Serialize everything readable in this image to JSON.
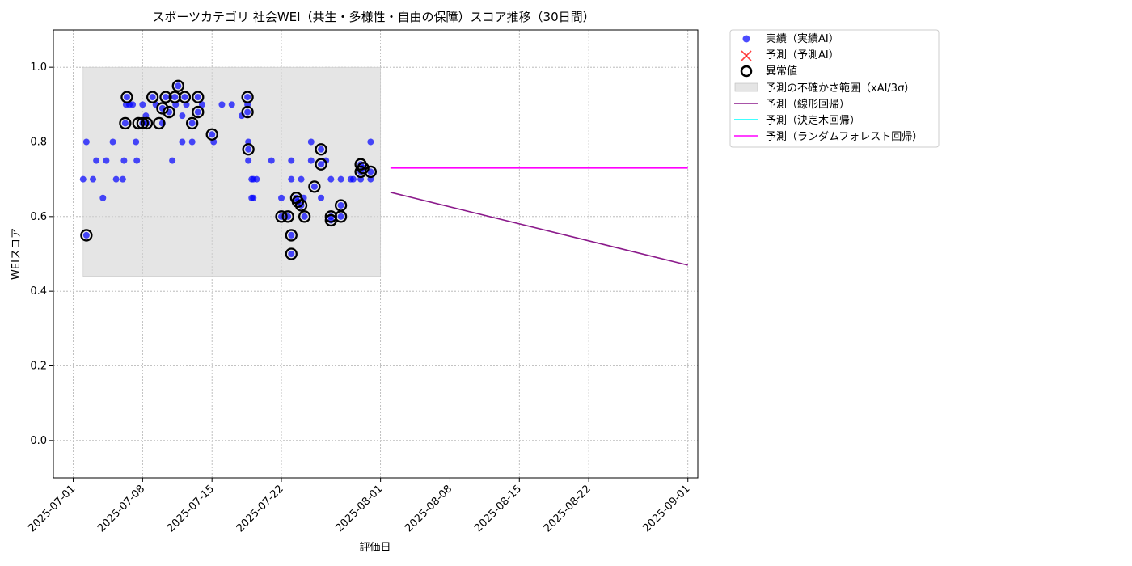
{
  "chart_data": {
    "type": "scatter",
    "title": "スポーツカテゴリ 社会WEI（共生・多様性・自由の保障）スコア推移（30日間）",
    "xlabel": "評価日",
    "ylabel": "WEIスコア",
    "xlim": [
      "2025-06-29",
      "2025-09-02"
    ],
    "ylim": [
      -0.1,
      1.1
    ],
    "x_ticks": [
      "2025-07-01",
      "2025-07-08",
      "2025-07-15",
      "2025-07-22",
      "2025-08-01",
      "2025-08-08",
      "2025-08-15",
      "2025-08-22",
      "2025-09-01"
    ],
    "y_ticks": [
      "0.0",
      "0.2",
      "0.4",
      "0.6",
      "0.8",
      "1.0"
    ],
    "grid": true,
    "legend_position": "outside-top-right",
    "colors": {
      "actual": "#0000ff",
      "predicted_ai": "#ff0000",
      "anomaly": "#000000",
      "uncertainty": "#d3d3d3",
      "linear": "#8b1a8b",
      "decision_tree": "#00ffff",
      "random_forest": "#ff00ff"
    },
    "legend": [
      {
        "key": "actual",
        "label": "実績（実績AI）"
      },
      {
        "key": "predicted_ai",
        "label": "予測（予測AI）"
      },
      {
        "key": "anomaly",
        "label": "異常値"
      },
      {
        "key": "uncertainty",
        "label": "予測の不確かさ範囲（xAI/3σ）"
      },
      {
        "key": "linear",
        "label": "予測（線形回帰）"
      },
      {
        "key": "decision_tree",
        "label": "予測（決定木回帰）"
      },
      {
        "key": "random_forest",
        "label": "予測（ランダムフォレスト回帰）"
      }
    ],
    "uncertainty_band": {
      "x_start": "2025-07-02",
      "x_end": "2025-08-01",
      "y_low": 0.44,
      "y_high": 1.0
    },
    "actual_points": [
      [
        "2025-07-02",
        0.7
      ],
      [
        "2025-07-02T08",
        0.55
      ],
      [
        "2025-07-02T08",
        0.8
      ],
      [
        "2025-07-03",
        0.7
      ],
      [
        "2025-07-03T08",
        0.75
      ],
      [
        "2025-07-04",
        0.65
      ],
      [
        "2025-07-04T08",
        0.75
      ],
      [
        "2025-07-05",
        0.8
      ],
      [
        "2025-07-05T08",
        0.7
      ],
      [
        "2025-07-06",
        0.7
      ],
      [
        "2025-07-06T03",
        0.75
      ],
      [
        "2025-07-06T06",
        0.85
      ],
      [
        "2025-07-06T08",
        0.9
      ],
      [
        "2025-07-06T10",
        0.92
      ],
      [
        "2025-07-06T16",
        0.9
      ],
      [
        "2025-07-07",
        0.9
      ],
      [
        "2025-07-07T08",
        0.8
      ],
      [
        "2025-07-07T10",
        0.75
      ],
      [
        "2025-07-08",
        0.85
      ],
      [
        "2025-07-08",
        0.9
      ],
      [
        "2025-07-08T08",
        0.87
      ],
      [
        "2025-07-08T10",
        0.85
      ],
      [
        "2025-07-09",
        0.92
      ],
      [
        "2025-07-09T08",
        0.9
      ],
      [
        "2025-07-10",
        0.85
      ],
      [
        "2025-07-10",
        0.89
      ],
      [
        "2025-07-10T08",
        0.92
      ],
      [
        "2025-07-10T16",
        0.88
      ],
      [
        "2025-07-11",
        0.75
      ],
      [
        "2025-07-11T06",
        0.92
      ],
      [
        "2025-07-11T08",
        0.9
      ],
      [
        "2025-07-11T14",
        0.95
      ],
      [
        "2025-07-12",
        0.87
      ],
      [
        "2025-07-12",
        0.8
      ],
      [
        "2025-07-12T06",
        0.92
      ],
      [
        "2025-07-12T10",
        0.9
      ],
      [
        "2025-07-13",
        0.85
      ],
      [
        "2025-07-13",
        0.8
      ],
      [
        "2025-07-13T14",
        0.92
      ],
      [
        "2025-07-13T14",
        0.88
      ],
      [
        "2025-07-14",
        0.9
      ],
      [
        "2025-07-15",
        0.82
      ],
      [
        "2025-07-15T04",
        0.8
      ],
      [
        "2025-07-16",
        0.9
      ],
      [
        "2025-07-17",
        0.9
      ],
      [
        "2025-07-18",
        0.87
      ],
      [
        "2025-07-18T14",
        0.92
      ],
      [
        "2025-07-18T14",
        0.88
      ],
      [
        "2025-07-18T14",
        0.9
      ],
      [
        "2025-07-18T16",
        0.8
      ],
      [
        "2025-07-18T16",
        0.78
      ],
      [
        "2025-07-18T16",
        0.75
      ],
      [
        "2025-07-19",
        0.7
      ],
      [
        "2025-07-19",
        0.65
      ],
      [
        "2025-07-19T04",
        0.7
      ],
      [
        "2025-07-19T04",
        0.65
      ],
      [
        "2025-07-19T12",
        0.7
      ],
      [
        "2025-07-21",
        0.75
      ],
      [
        "2025-07-22",
        0.65
      ],
      [
        "2025-07-22",
        0.6
      ],
      [
        "2025-07-22T16",
        0.6
      ],
      [
        "2025-07-23",
        0.75
      ],
      [
        "2025-07-23",
        0.7
      ],
      [
        "2025-07-23",
        0.55
      ],
      [
        "2025-07-23",
        0.5
      ],
      [
        "2025-07-23T12",
        0.65
      ],
      [
        "2025-07-23T16",
        0.64
      ],
      [
        "2025-07-24",
        0.7
      ],
      [
        "2025-07-24",
        0.63
      ],
      [
        "2025-07-24T06",
        0.65
      ],
      [
        "2025-07-24T08",
        0.6
      ],
      [
        "2025-07-25",
        0.8
      ],
      [
        "2025-07-25",
        0.75
      ],
      [
        "2025-07-25T08",
        0.68
      ],
      [
        "2025-07-26",
        0.65
      ],
      [
        "2025-07-26",
        0.78
      ],
      [
        "2025-07-26",
        0.74
      ],
      [
        "2025-07-26T12",
        0.75
      ],
      [
        "2025-07-27",
        0.7
      ],
      [
        "2025-07-27",
        0.6
      ],
      [
        "2025-07-27",
        0.59
      ],
      [
        "2025-07-28",
        0.7
      ],
      [
        "2025-07-28",
        0.63
      ],
      [
        "2025-07-28",
        0.6
      ],
      [
        "2025-07-29",
        0.7
      ],
      [
        "2025-07-29T06",
        0.7
      ],
      [
        "2025-07-30",
        0.74
      ],
      [
        "2025-07-30",
        0.72
      ],
      [
        "2025-07-30",
        0.7
      ],
      [
        "2025-07-30T06",
        0.73
      ],
      [
        "2025-07-31",
        0.7
      ],
      [
        "2025-07-31",
        0.72
      ],
      [
        "2025-07-31",
        0.8
      ]
    ],
    "anomaly_points": [
      [
        "2025-07-02T08",
        0.55
      ],
      [
        "2025-07-06T06",
        0.85
      ],
      [
        "2025-07-06T10",
        0.92
      ],
      [
        "2025-07-07T14",
        0.85
      ],
      [
        "2025-07-08",
        0.85
      ],
      [
        "2025-07-08T10",
        0.85
      ],
      [
        "2025-07-09",
        0.92
      ],
      [
        "2025-07-09T16",
        0.85
      ],
      [
        "2025-07-10",
        0.89
      ],
      [
        "2025-07-10T08",
        0.92
      ],
      [
        "2025-07-10T16",
        0.88
      ],
      [
        "2025-07-11T06",
        0.92
      ],
      [
        "2025-07-11T14",
        0.95
      ],
      [
        "2025-07-12T06",
        0.92
      ],
      [
        "2025-07-13",
        0.85
      ],
      [
        "2025-07-13T14",
        0.92
      ],
      [
        "2025-07-13T14",
        0.88
      ],
      [
        "2025-07-15",
        0.82
      ],
      [
        "2025-07-18T14",
        0.92
      ],
      [
        "2025-07-18T14",
        0.88
      ],
      [
        "2025-07-18T16",
        0.78
      ],
      [
        "2025-07-22",
        0.6
      ],
      [
        "2025-07-22T16",
        0.6
      ],
      [
        "2025-07-23",
        0.55
      ],
      [
        "2025-07-23",
        0.5
      ],
      [
        "2025-07-23T12",
        0.65
      ],
      [
        "2025-07-23T16",
        0.64
      ],
      [
        "2025-07-24",
        0.63
      ],
      [
        "2025-07-24T08",
        0.6
      ],
      [
        "2025-07-25T08",
        0.68
      ],
      [
        "2025-07-26",
        0.78
      ],
      [
        "2025-07-26",
        0.74
      ],
      [
        "2025-07-27",
        0.6
      ],
      [
        "2025-07-27",
        0.59
      ],
      [
        "2025-07-28",
        0.63
      ],
      [
        "2025-07-28",
        0.6
      ],
      [
        "2025-07-30",
        0.74
      ],
      [
        "2025-07-30",
        0.72
      ],
      [
        "2025-07-30T06",
        0.73
      ],
      [
        "2025-07-31",
        0.72
      ]
    ],
    "lines": [
      {
        "key": "linear",
        "points": [
          [
            "2025-08-02",
            0.665
          ],
          [
            "2025-09-01",
            0.47
          ]
        ]
      },
      {
        "key": "random_forest",
        "points": [
          [
            "2025-08-02",
            0.73
          ],
          [
            "2025-09-01",
            0.73
          ]
        ]
      }
    ]
  }
}
